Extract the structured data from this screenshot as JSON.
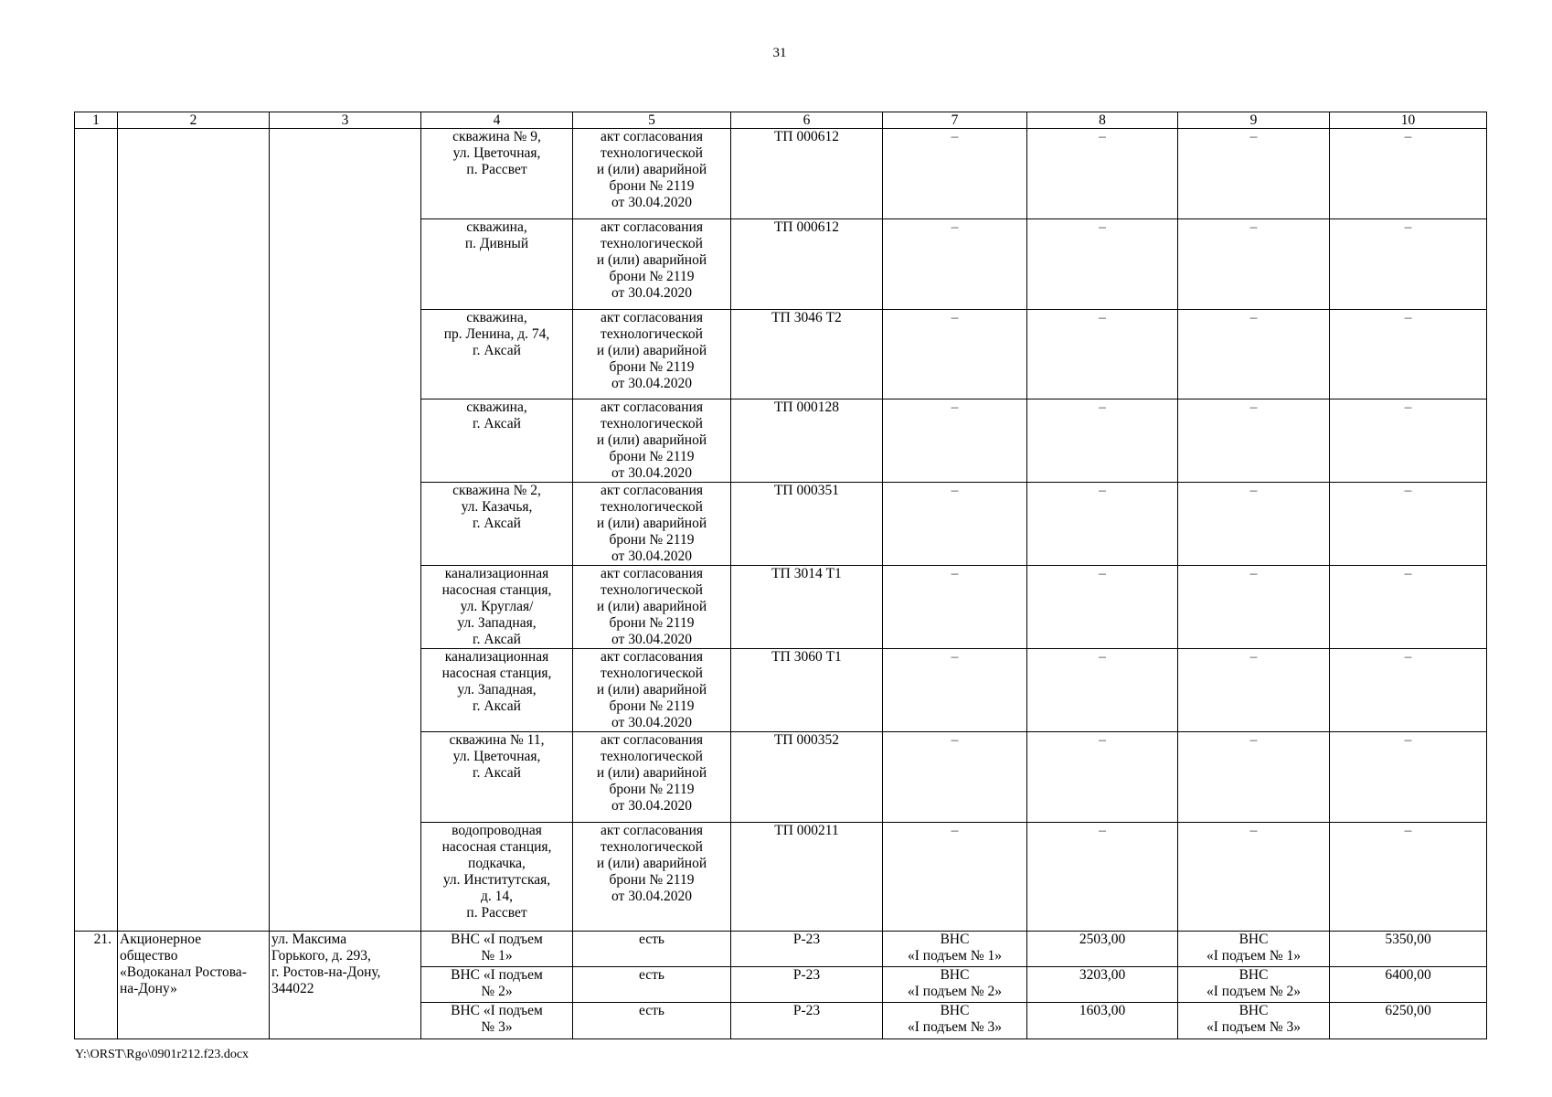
{
  "page_number": "31",
  "table": {
    "headers": [
      "1",
      "2",
      "3",
      "4",
      "5",
      "6",
      "7",
      "8",
      "9",
      "10"
    ],
    "continued_rows": [
      {
        "object": "скважина № 9,\nул. Цветочная,\nп. Рассвет",
        "document": "акт согласования\nтехнологической\nи (или) аварийной\nброни № 2119\nот 30.04.2020",
        "tp": "ТП 000612",
        "c7": "–",
        "c8": "–",
        "c9": "–",
        "c10": "–"
      },
      {
        "object": "скважина,\nп. Дивный",
        "document": "акт согласования\nтехнологической\nи (или) аварийной\nброни № 2119\nот 30.04.2020",
        "tp": "ТП 000612",
        "c7": "–",
        "c8": "–",
        "c9": "–",
        "c10": "–"
      },
      {
        "object": "скважина,\nпр. Ленина, д. 74,\nг. Аксай",
        "document": "акт согласования\nтехнологической\nи (или) аварийной\nброни № 2119\nот 30.04.2020",
        "tp": "ТП 3046 Т2",
        "c7": "–",
        "c8": "–",
        "c9": "–",
        "c10": "–"
      },
      {
        "object": "скважина,\nг. Аксай",
        "document": "акт согласования\nтехнологической\nи (или) аварийной\nброни № 2119\nот 30.04.2020",
        "tp": "ТП 000128",
        "c7": "–",
        "c8": "–",
        "c9": "–",
        "c10": "–"
      },
      {
        "object": "скважина № 2,\nул. Казачья,\nг. Аксай",
        "document": "акт согласования\nтехнологической\nи (или) аварийной\nброни № 2119\nот 30.04.2020",
        "tp": "ТП 000351",
        "c7": "–",
        "c8": "–",
        "c9": "–",
        "c10": "–"
      },
      {
        "object": "канализационная\nнасосная станция,\nул. Круглая/\nул. Западная,\nг. Аксай",
        "document": "акт согласования\nтехнологической\nи (или) аварийной\nброни № 2119\nот 30.04.2020",
        "tp": "ТП 3014 Т1",
        "c7": "–",
        "c8": "–",
        "c9": "–",
        "c10": "–"
      },
      {
        "object": "канализационная\nнасосная станция,\nул. Западная,\nг. Аксай",
        "document": "акт согласования\nтехнологической\nи (или) аварийной\nброни № 2119\nот 30.04.2020",
        "tp": "ТП 3060 Т1",
        "c7": "–",
        "c8": "–",
        "c9": "–",
        "c10": "–"
      },
      {
        "object": "скважина № 11,\nул. Цветочная,\nг. Аксай",
        "document": "акт согласования\nтехнологической\nи (или) аварийной\nброни № 2119\nот 30.04.2020",
        "tp": "ТП 000352",
        "c7": "–",
        "c8": "–",
        "c9": "–",
        "c10": "–"
      },
      {
        "object": "водопроводная\nнасосная станция,\nподкачка,\nул. Институтская,\nд. 14,\nп. Рассвет",
        "document": "акт согласования\nтехнологической\nи (или) аварийной\nброни № 2119\nот 30.04.2020",
        "tp": "ТП 000211",
        "c7": "–",
        "c8": "–",
        "c9": "–",
        "c10": "–"
      }
    ],
    "entry_21": {
      "number": "21.",
      "organization": "Акционерное\nобщество\n«Водоканал Ростова-\nна-Дону»",
      "address": "ул. Максима\nГорького, д. 293,\nг. Ростов-на-Дону,\n344022",
      "rows": [
        {
          "object": "ВНС «I подъем\n№ 1»",
          "document": "есть",
          "tp": "Р-23",
          "c7": "ВНС\n«I подъем № 1»",
          "c8": "2503,00",
          "c9": "ВНС\n«I подъем № 1»",
          "c10": "5350,00"
        },
        {
          "object": "ВНС «I подъем\n№ 2»",
          "document": "есть",
          "tp": "Р-23",
          "c7": "ВНС\n«I подъем № 2»",
          "c8": "3203,00",
          "c9": "ВНС\n«I подъем № 2»",
          "c10": "6400,00"
        },
        {
          "object": "ВНС «I подъем\n№ 3»",
          "document": "есть",
          "tp": "Р-23",
          "c7": "ВНС\n«I подъем № 3»",
          "c8": "1603,00",
          "c9": "ВНС\n«I подъем № 3»",
          "c10": "6250,00"
        }
      ]
    }
  },
  "footer": "Y:\\ORST\\Rgo\\0901r212.f23.docx"
}
